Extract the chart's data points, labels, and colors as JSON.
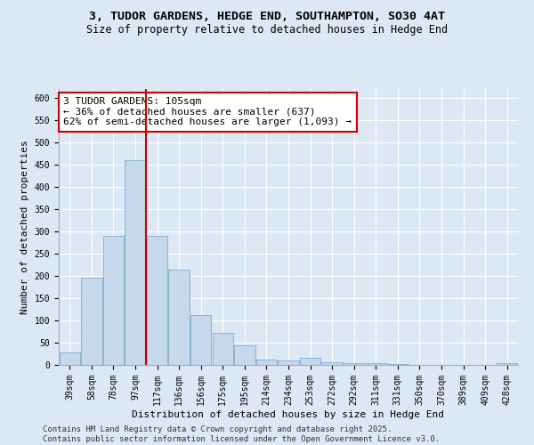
{
  "title_line1": "3, TUDOR GARDENS, HEDGE END, SOUTHAMPTON, SO30 4AT",
  "title_line2": "Size of property relative to detached houses in Hedge End",
  "xlabel": "Distribution of detached houses by size in Hedge End",
  "ylabel": "Number of detached properties",
  "categories": [
    "39sqm",
    "58sqm",
    "78sqm",
    "97sqm",
    "117sqm",
    "136sqm",
    "156sqm",
    "175sqm",
    "195sqm",
    "214sqm",
    "234sqm",
    "253sqm",
    "272sqm",
    "292sqm",
    "311sqm",
    "331sqm",
    "350sqm",
    "370sqm",
    "389sqm",
    "409sqm",
    "428sqm"
  ],
  "values": [
    28,
    197,
    290,
    460,
    290,
    215,
    112,
    72,
    45,
    12,
    10,
    17,
    7,
    4,
    5,
    3,
    0,
    0,
    0,
    0,
    5
  ],
  "bar_color": "#c5d8ec",
  "bar_edge_color": "#8ab4d4",
  "vline_x": 3.5,
  "vline_color": "#cc0000",
  "annotation_box_text": "3 TUDOR GARDENS: 105sqm\n← 36% of detached houses are smaller (637)\n62% of semi-detached houses are larger (1,093) →",
  "ylim": [
    0,
    620
  ],
  "yticks": [
    0,
    50,
    100,
    150,
    200,
    250,
    300,
    350,
    400,
    450,
    500,
    550,
    600
  ],
  "footer_line1": "Contains HM Land Registry data © Crown copyright and database right 2025.",
  "footer_line2": "Contains public sector information licensed under the Open Government Licence v3.0.",
  "bg_color": "#dde8f5",
  "plot_bg_color": "#dde8f5",
  "title_fontsize": 9.5,
  "subtitle_fontsize": 8.5,
  "tick_fontsize": 7,
  "label_fontsize": 8,
  "annotation_fontsize": 8,
  "footer_fontsize": 6.5
}
